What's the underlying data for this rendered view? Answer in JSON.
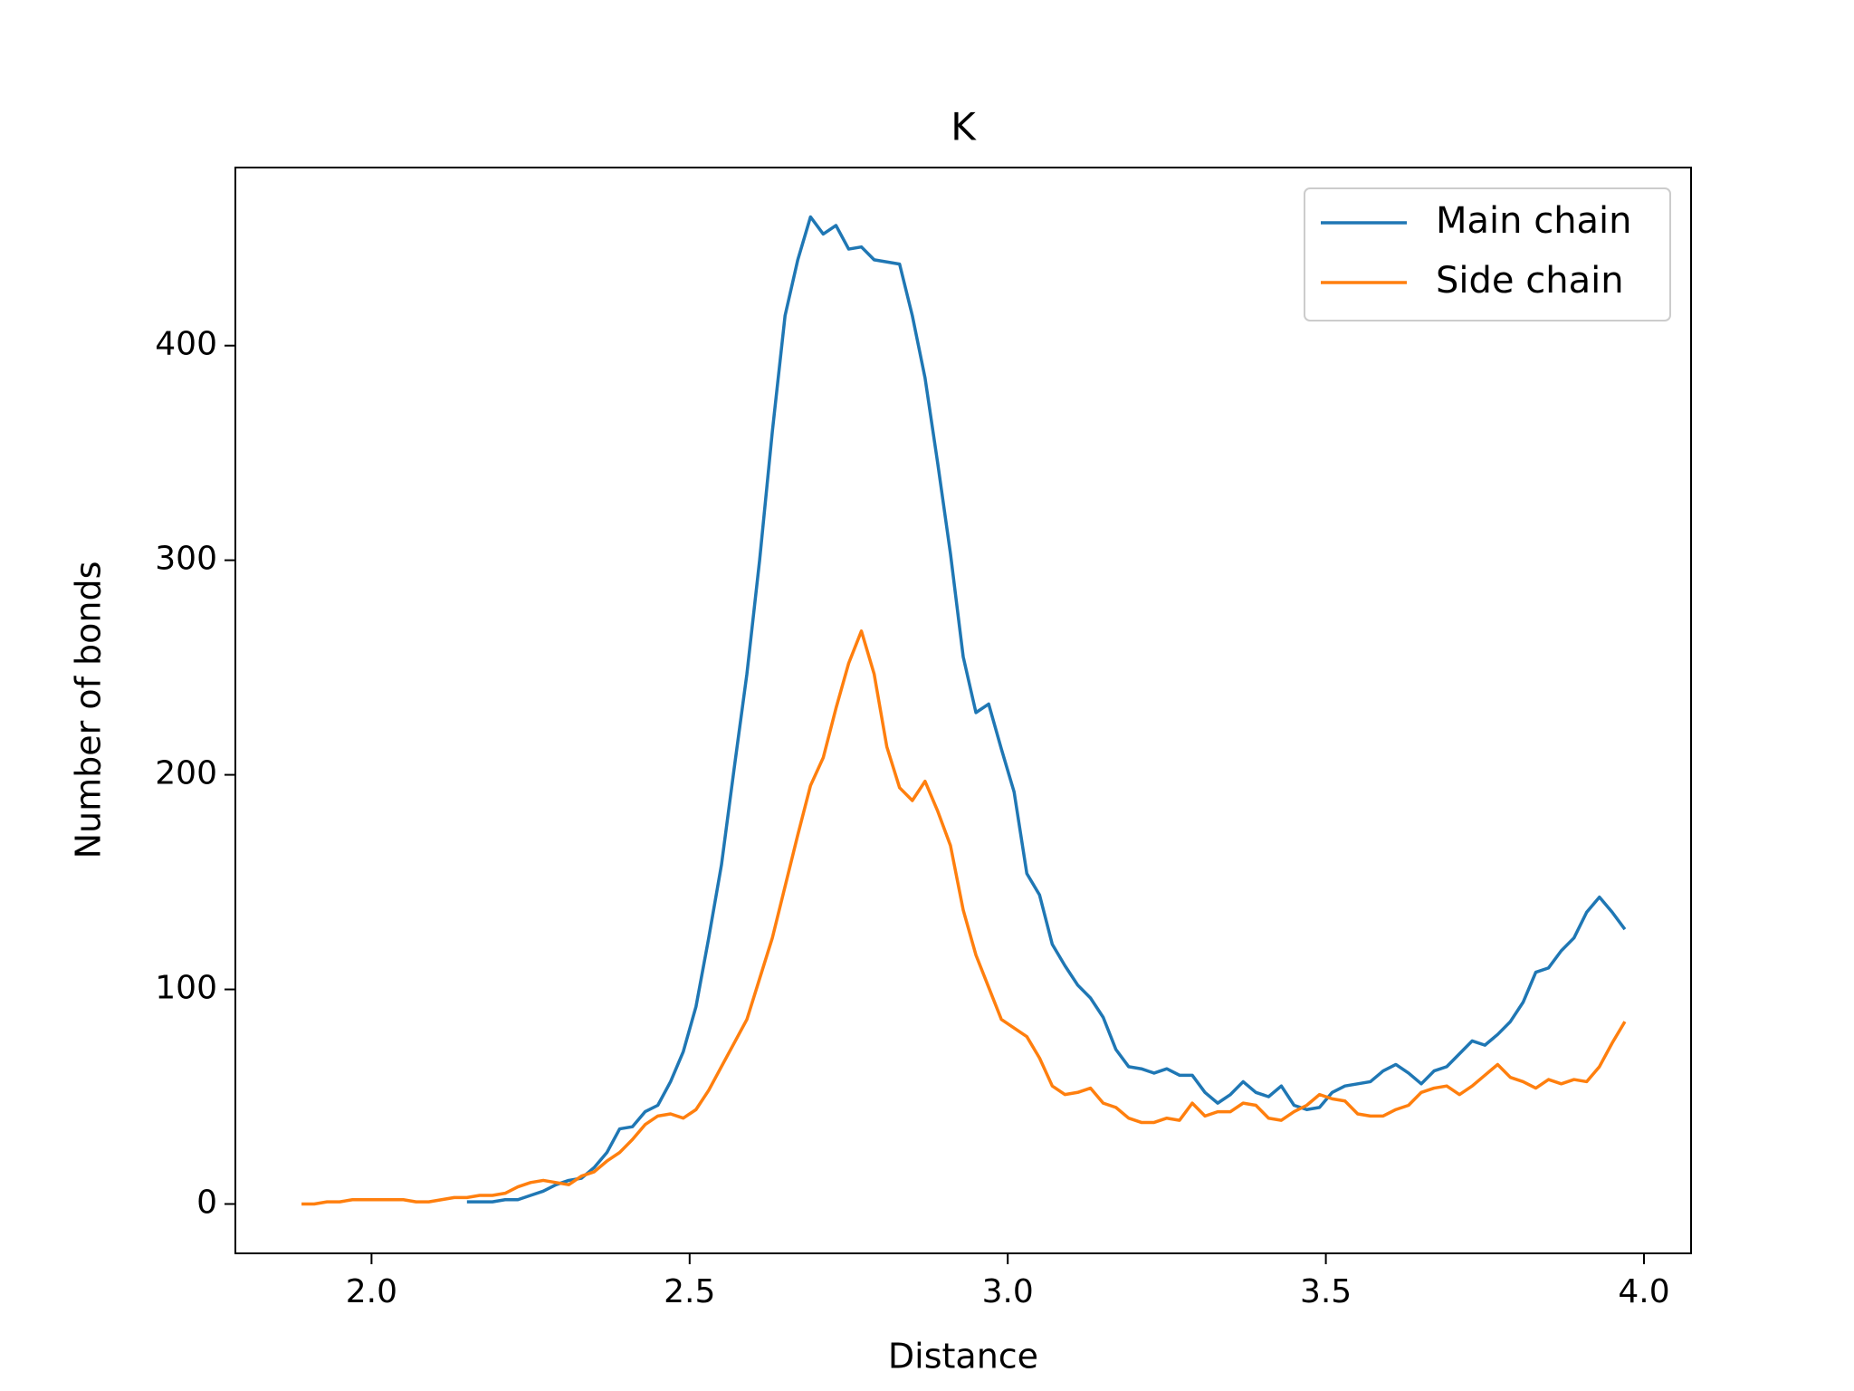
{
  "chart_data": {
    "type": "line",
    "title": "K",
    "x_label": "Distance",
    "y_label": "Number of bonds",
    "series": [
      {
        "name": "Main chain",
        "color": "#1f77b4",
        "x": [
          2.15,
          2.17,
          2.19,
          2.21,
          2.23,
          2.25,
          2.27,
          2.29,
          2.31,
          2.33,
          2.35,
          2.37,
          2.39,
          2.41,
          2.43,
          2.45,
          2.47,
          2.49,
          2.51,
          2.53,
          2.55,
          2.57,
          2.59,
          2.61,
          2.63,
          2.65,
          2.67,
          2.69,
          2.71,
          2.73,
          2.75,
          2.77,
          2.79,
          2.81,
          2.83,
          2.85,
          2.87,
          2.89,
          2.91,
          2.93,
          2.95,
          2.97,
          2.99,
          3.01,
          3.03,
          3.05,
          3.07,
          3.09,
          3.11,
          3.13,
          3.15,
          3.17,
          3.19,
          3.21,
          3.23,
          3.25,
          3.27,
          3.29,
          3.31,
          3.33,
          3.35,
          3.37,
          3.39,
          3.41,
          3.43,
          3.45,
          3.47,
          3.49,
          3.51,
          3.53,
          3.55,
          3.57,
          3.59,
          3.61,
          3.63,
          3.65,
          3.67,
          3.69,
          3.71,
          3.73,
          3.75,
          3.77,
          3.79,
          3.81,
          3.83,
          3.85,
          3.87,
          3.89,
          3.91,
          3.93,
          3.95,
          3.97
        ],
        "values": [
          1,
          1,
          1,
          2,
          2,
          4,
          6,
          9,
          11,
          12,
          17,
          24,
          35,
          36,
          43,
          46,
          57,
          71,
          92,
          124,
          158,
          203,
          247,
          300,
          360,
          414,
          440,
          460,
          452,
          456,
          445,
          446,
          440,
          439,
          438,
          414,
          385,
          345,
          303,
          255,
          229,
          233,
          212,
          192,
          154,
          144,
          121,
          111,
          102,
          96,
          87,
          72,
          64,
          63,
          61,
          63,
          60,
          60,
          52,
          47,
          51,
          57,
          52,
          50,
          55,
          46,
          44,
          45,
          52,
          55,
          56,
          57,
          62,
          65,
          61,
          56,
          62,
          64,
          70,
          76,
          74,
          79,
          85,
          94,
          108,
          110,
          118,
          124,
          136,
          143,
          136,
          128
        ]
      },
      {
        "name": "Side chain",
        "color": "#ff7f0e",
        "x": [
          1.89,
          1.91,
          1.93,
          1.95,
          1.97,
          1.99,
          2.01,
          2.03,
          2.05,
          2.07,
          2.09,
          2.11,
          2.13,
          2.15,
          2.17,
          2.19,
          2.21,
          2.23,
          2.25,
          2.27,
          2.29,
          2.31,
          2.33,
          2.35,
          2.37,
          2.39,
          2.41,
          2.43,
          2.45,
          2.47,
          2.49,
          2.51,
          2.53,
          2.55,
          2.57,
          2.59,
          2.61,
          2.63,
          2.65,
          2.67,
          2.69,
          2.71,
          2.73,
          2.75,
          2.77,
          2.79,
          2.81,
          2.83,
          2.85,
          2.87,
          2.89,
          2.91,
          2.93,
          2.95,
          2.97,
          2.99,
          3.01,
          3.03,
          3.05,
          3.07,
          3.09,
          3.11,
          3.13,
          3.15,
          3.17,
          3.19,
          3.21,
          3.23,
          3.25,
          3.27,
          3.29,
          3.31,
          3.33,
          3.35,
          3.37,
          3.39,
          3.41,
          3.43,
          3.45,
          3.47,
          3.49,
          3.51,
          3.53,
          3.55,
          3.57,
          3.59,
          3.61,
          3.63,
          3.65,
          3.67,
          3.69,
          3.71,
          3.73,
          3.75,
          3.77,
          3.79,
          3.81,
          3.83,
          3.85,
          3.87,
          3.89,
          3.91,
          3.93,
          3.95,
          3.97
        ],
        "values": [
          0,
          0,
          1,
          1,
          2,
          2,
          2,
          2,
          2,
          1,
          1,
          2,
          3,
          3,
          4,
          4,
          5,
          8,
          10,
          11,
          10,
          9,
          13,
          15,
          20,
          24,
          30,
          37,
          41,
          42,
          40,
          44,
          53,
          64,
          75,
          86,
          105,
          124,
          148,
          172,
          195,
          208,
          231,
          252,
          267,
          247,
          213,
          194,
          188,
          197,
          183,
          167,
          137,
          116,
          101,
          86,
          82,
          78,
          68,
          55,
          51,
          52,
          54,
          47,
          45,
          40,
          38,
          38,
          40,
          39,
          47,
          41,
          43,
          43,
          47,
          46,
          40,
          39,
          43,
          46,
          51,
          49,
          48,
          42,
          41,
          41,
          44,
          46,
          52,
          54,
          55,
          51,
          55,
          60,
          65,
          59,
          57,
          54,
          58,
          56,
          58,
          57,
          64,
          75,
          85
        ]
      }
    ],
    "xlim": [
      1.786,
      4.074
    ],
    "ylim": [
      -23,
      483
    ],
    "xticks": [
      {
        "value": 2.0,
        "label": "2.0"
      },
      {
        "value": 2.5,
        "label": "2.5"
      },
      {
        "value": 3.0,
        "label": "3.0"
      },
      {
        "value": 3.5,
        "label": "3.5"
      },
      {
        "value": 4.0,
        "label": "4.0"
      }
    ],
    "yticks": [
      0,
      100,
      200,
      300,
      400
    ],
    "legend": "upper right",
    "grid": false
  }
}
